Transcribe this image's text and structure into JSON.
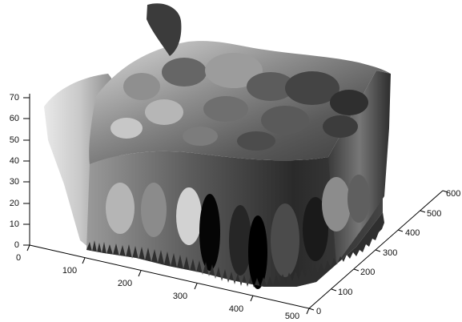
{
  "plot": {
    "type": "3d-surface",
    "colormap": "grayscale",
    "grid": false,
    "z_ticks": [
      "0",
      "10",
      "20",
      "30",
      "40",
      "50",
      "60",
      "70"
    ],
    "x_ticks": [
      "0",
      "100",
      "200",
      "300",
      "400",
      "500"
    ],
    "y_ticks": [
      "0",
      "100",
      "200",
      "300",
      "400",
      "500",
      "600"
    ]
  }
}
